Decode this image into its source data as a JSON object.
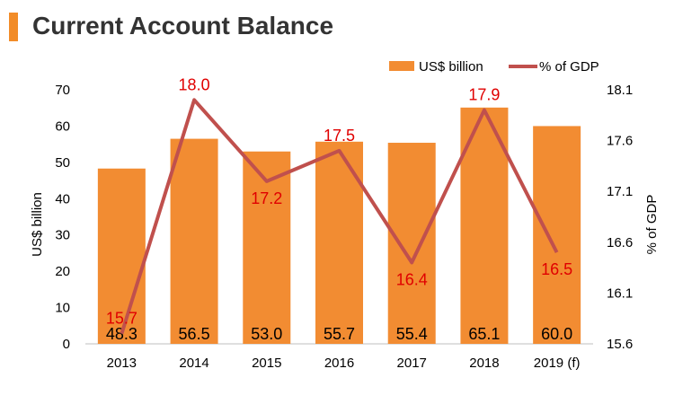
{
  "header": {
    "title": "Current Account Balance",
    "accent_color": "#F28C28"
  },
  "chart_data": {
    "type": "bar",
    "title": "Current Account Balance",
    "categories": [
      "2013",
      "2014",
      "2015",
      "2016",
      "2017",
      "2018",
      "2019 (f)"
    ],
    "series": [
      {
        "name": "US$ billion",
        "type": "bar",
        "axis": "left",
        "color": "#F28C32",
        "values": [
          48.3,
          56.5,
          53.0,
          55.7,
          55.4,
          65.1,
          60.0
        ],
        "labels": [
          "48.3",
          "56.5",
          "53.0",
          "55.7",
          "55.4",
          "65.1",
          "60.0"
        ]
      },
      {
        "name": "% of GDP",
        "type": "line",
        "axis": "right",
        "color": "#C0504D",
        "values": [
          15.7,
          18.0,
          17.2,
          17.5,
          16.4,
          17.9,
          16.5
        ],
        "labels": [
          "15.7",
          "18.0",
          "17.2",
          "17.5",
          "16.4",
          "17.9",
          "16.5"
        ]
      }
    ],
    "ylabel": "US$ billion",
    "ylim": [
      0,
      70
    ],
    "yticks": [
      "0",
      "10",
      "20",
      "30",
      "40",
      "50",
      "60",
      "70"
    ],
    "y2label": "% of GDP",
    "y2lim": [
      15.6,
      18.1
    ],
    "y2ticks": [
      "15.6",
      "16.1",
      "16.6",
      "17.1",
      "17.6",
      "18.1"
    ],
    "legend_position": "top-right",
    "grid": false
  }
}
